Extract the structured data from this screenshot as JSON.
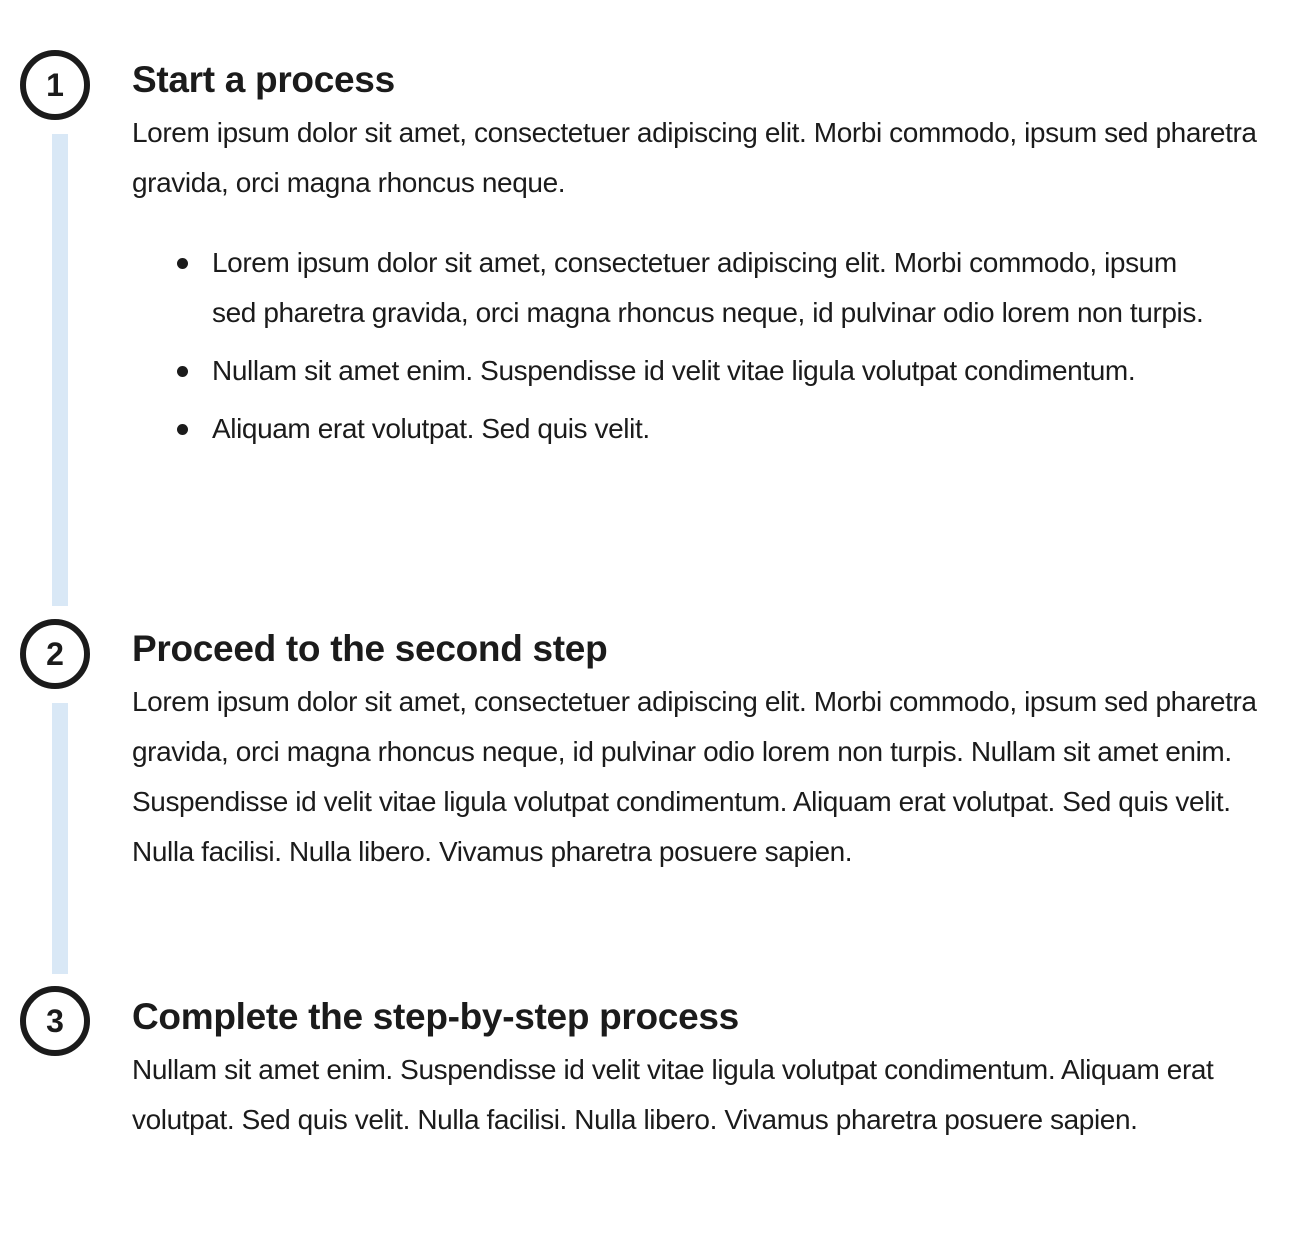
{
  "steps": [
    {
      "number": "1",
      "heading": "Start a process",
      "text": "Lorem ipsum dolor sit amet, consectetuer adipiscing elit. Morbi commodo, ipsum sed pharetra gravida, orci magna rhoncus neque.",
      "bullets": [
        "Lorem ipsum dolor sit amet, consectetuer adipiscing elit. Morbi commodo, ipsum sed pharetra gravida, orci magna rhoncus neque, id pulvinar odio lorem non turpis.",
        "Nullam sit amet enim. Suspendisse id velit vitae ligula volutpat condimentum.",
        "Aliquam erat volutpat. Sed quis velit."
      ]
    },
    {
      "number": "2",
      "heading": "Proceed to the second step",
      "text": "Lorem ipsum dolor sit amet, consectetuer adipiscing elit. Morbi commodo, ipsum sed pharetra gravida, orci magna rhoncus neque, id pulvinar odio lorem non turpis. Nullam sit amet enim. Suspendisse id velit vitae ligula volutpat condimentum. Aliquam erat volutpat. Sed quis velit. Nulla facilisi. Nulla libero. Vivamus pharetra posuere sapien."
    },
    {
      "number": "3",
      "heading": "Complete the step-by-step process",
      "text": "Nullam sit amet enim. Suspendisse id velit vitae ligula volutpat condimentum. Aliquam erat volutpat. Sed quis velit. Nulla facilisi. Nulla libero. Vivamus pharetra posuere sapien."
    }
  ],
  "colors": {
    "text": "#1b1b1b",
    "connector": "#d9e8f6",
    "marker_border": "#1b1b1b",
    "background": "#ffffff"
  }
}
